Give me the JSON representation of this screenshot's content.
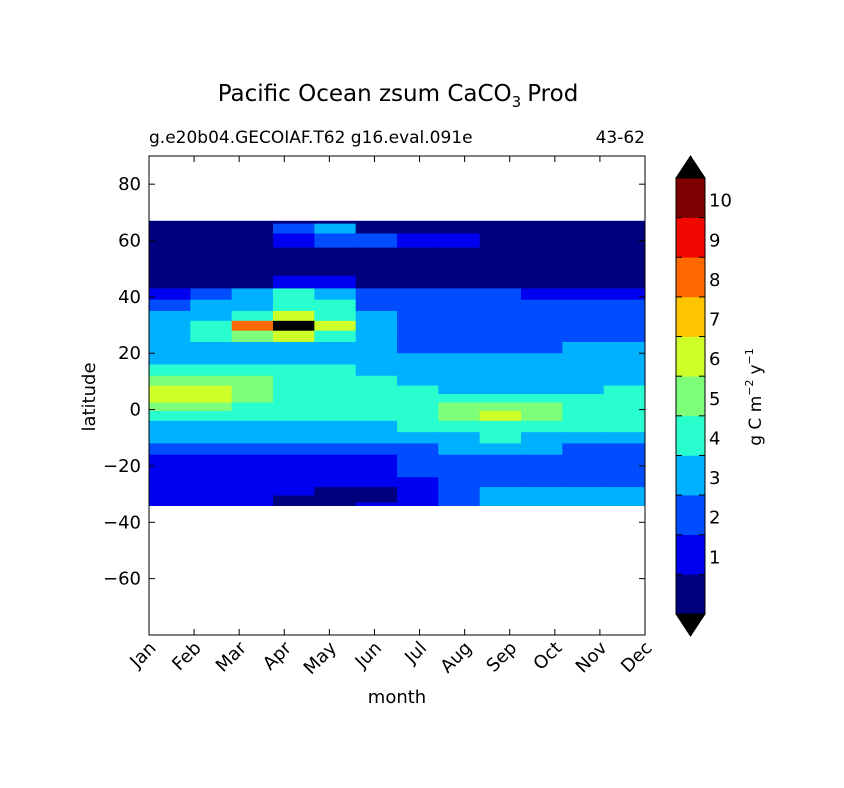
{
  "chart_data": {
    "type": "heatmap",
    "title": "Pacific Ocean zsum CaCO",
    "title_subscript": "3",
    "title_suffix": "Prod",
    "subtitle_left": "g.e20b04.GECOIAF.T62 g16.eval.091e",
    "subtitle_right": "43-62",
    "xlabel": "month",
    "ylabel": "latitude",
    "x_categories": [
      "Jan",
      "Feb",
      "Mar",
      "Apr",
      "May",
      "Jun",
      "Jul",
      "Aug",
      "Sep",
      "Oct",
      "Nov",
      "Dec"
    ],
    "xlim": [
      0,
      11
    ],
    "ylim": [
      -80,
      90
    ],
    "y_ticks": [
      -60,
      -40,
      -20,
      0,
      20,
      40,
      60,
      80
    ],
    "y_tick_labels": [
      "−60",
      "−40",
      "−20",
      "0",
      "20",
      "40",
      "60",
      "80"
    ],
    "data_lat_range": [
      -34,
      67
    ],
    "colorbar": {
      "label_base": "g C m",
      "label_exp1": "−2",
      "label_mid": "y",
      "label_exp2": "−1",
      "levels": [
        0,
        1,
        2,
        3,
        4,
        5,
        6,
        7,
        8,
        9,
        10,
        11
      ],
      "tick_labels": [
        "1",
        "2",
        "3",
        "4",
        "5",
        "6",
        "7",
        "8",
        "9",
        "10"
      ],
      "colors": [
        "#00007f",
        "#0000f1",
        "#004dff",
        "#00b1ff",
        "#29ffce",
        "#7dff7a",
        "#ceff29",
        "#ffc400",
        "#ff6800",
        "#f10800",
        "#7f0000"
      ],
      "under_color": "#000000",
      "over_color": "#000000"
    },
    "rows": [
      {
        "lat": 67,
        "values": [
          0,
          0,
          0,
          0,
          0,
          0,
          0,
          0,
          0,
          0,
          0,
          0
        ]
      },
      {
        "lat": 65,
        "values": [
          0,
          0,
          0,
          2,
          3,
          0,
          0,
          0,
          0,
          0,
          0,
          0
        ]
      },
      {
        "lat": 60,
        "values": [
          0,
          0,
          0,
          1,
          2,
          2,
          1,
          1,
          0,
          0,
          0,
          0
        ]
      },
      {
        "lat": 55,
        "values": [
          0,
          0,
          0,
          0,
          0,
          0,
          0,
          0,
          0,
          0,
          0,
          0
        ]
      },
      {
        "lat": 50,
        "values": [
          0,
          0,
          0,
          0,
          0,
          0,
          0,
          0,
          0,
          0,
          0,
          0
        ]
      },
      {
        "lat": 45,
        "values": [
          0,
          0,
          0,
          1,
          1,
          0,
          0,
          0,
          0,
          0,
          0,
          0
        ]
      },
      {
        "lat": 41,
        "values": [
          1,
          2,
          3,
          4,
          3,
          2,
          2,
          2,
          2,
          1,
          1,
          1
        ]
      },
      {
        "lat": 37,
        "values": [
          2,
          3,
          3,
          4,
          4,
          2,
          2,
          2,
          2,
          2,
          2,
          2
        ]
      },
      {
        "lat": 33,
        "values": [
          3,
          3,
          4,
          6,
          4,
          3,
          2,
          2,
          2,
          2,
          2,
          2
        ]
      },
      {
        "lat": 30,
        "values": [
          3,
          4,
          8,
          11,
          6,
          3,
          2,
          2,
          2,
          2,
          2,
          2
        ]
      },
      {
        "lat": 26,
        "values": [
          3,
          4,
          5,
          6,
          4,
          3,
          2,
          2,
          2,
          2,
          2,
          2
        ]
      },
      {
        "lat": 22,
        "values": [
          3,
          3,
          3,
          3,
          3,
          3,
          2,
          2,
          2,
          2,
          3,
          3
        ]
      },
      {
        "lat": 18,
        "values": [
          3,
          3,
          3,
          3,
          3,
          3,
          3,
          3,
          3,
          3,
          3,
          3
        ]
      },
      {
        "lat": 14,
        "values": [
          4,
          4,
          4,
          4,
          4,
          3,
          3,
          3,
          3,
          3,
          3,
          3
        ]
      },
      {
        "lat": 10,
        "values": [
          5,
          5,
          5,
          4,
          4,
          4,
          3,
          3,
          3,
          3,
          3,
          3
        ]
      },
      {
        "lat": 7,
        "values": [
          6,
          6,
          5,
          4,
          4,
          4,
          4,
          3,
          3,
          3,
          3,
          4
        ]
      },
      {
        "lat": 4,
        "values": [
          6,
          6,
          5,
          4,
          4,
          4,
          4,
          4,
          4,
          4,
          4,
          4
        ]
      },
      {
        "lat": 1,
        "values": [
          5,
          5,
          4,
          4,
          4,
          4,
          4,
          5,
          5,
          5,
          4,
          4
        ]
      },
      {
        "lat": -2,
        "values": [
          4,
          4,
          4,
          4,
          4,
          4,
          4,
          5,
          6,
          5,
          4,
          4
        ]
      },
      {
        "lat": -6,
        "values": [
          3,
          3,
          3,
          3,
          3,
          3,
          4,
          4,
          4,
          4,
          4,
          4
        ]
      },
      {
        "lat": -10,
        "values": [
          3,
          3,
          3,
          3,
          3,
          3,
          3,
          3,
          4,
          3,
          3,
          3
        ]
      },
      {
        "lat": -14,
        "values": [
          2,
          2,
          2,
          2,
          2,
          2,
          2,
          3,
          3,
          3,
          2,
          2
        ]
      },
      {
        "lat": -18,
        "values": [
          1,
          1,
          1,
          1,
          1,
          1,
          2,
          2,
          2,
          2,
          2,
          2
        ]
      },
      {
        "lat": -22,
        "values": [
          1,
          1,
          1,
          1,
          1,
          1,
          2,
          2,
          2,
          2,
          2,
          2
        ]
      },
      {
        "lat": -26,
        "values": [
          1,
          1,
          1,
          1,
          1,
          1,
          1,
          2,
          2,
          2,
          2,
          2
        ]
      },
      {
        "lat": -29,
        "values": [
          1,
          1,
          1,
          1,
          0,
          0,
          1,
          2,
          3,
          3,
          3,
          3
        ]
      },
      {
        "lat": -32,
        "values": [
          1,
          1,
          1,
          0,
          0,
          0,
          1,
          2,
          3,
          3,
          3,
          3
        ]
      },
      {
        "lat": -34,
        "values": [
          1,
          1,
          1,
          0,
          0,
          1,
          1,
          2,
          3,
          3,
          3,
          3
        ]
      }
    ]
  }
}
